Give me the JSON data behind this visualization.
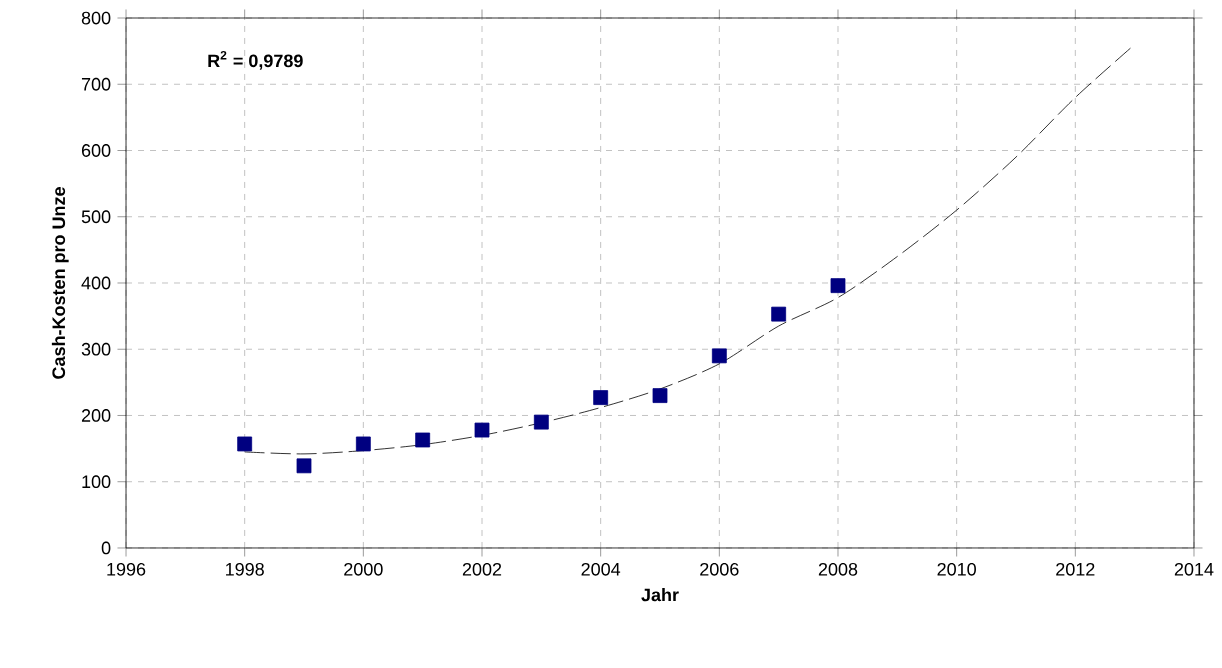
{
  "chart_data": {
    "type": "scatter",
    "xlabel": "Jahr",
    "ylabel": "Cash-Kosten pro Unze",
    "annotations": [
      "R$^{2}$ = 0,9789"
    ],
    "xlim": [
      1996,
      2014
    ],
    "xticks": [
      1996,
      1998,
      2000,
      2002,
      2004,
      2006,
      2008,
      2010,
      2012,
      2014
    ],
    "ylim": [
      0,
      800
    ],
    "yticks": [
      0,
      100,
      200,
      300,
      400,
      500,
      600,
      700,
      800
    ],
    "grid": true,
    "series": [
      {
        "color": "#000080",
        "marker": "square",
        "x": [
          1998,
          1999,
          2000,
          2001,
          2002,
          2003,
          2004,
          2005,
          2006,
          2007,
          2008
        ],
        "values": [
          157,
          124,
          157,
          163,
          178,
          190,
          227,
          230,
          290,
          353,
          396
        ]
      },
      {
        "type": "line",
        "color": "#000000",
        "marker": "none",
        "line_style": "dashed",
        "x": [
          1998,
          1999,
          2000,
          2001,
          2002,
          2003,
          2004,
          2005,
          2006,
          2007,
          2008,
          2009,
          2010,
          2011,
          2012,
          2013
        ],
        "values": [
          145,
          142,
          147,
          156,
          170,
          189,
          212,
          240,
          278,
          335,
          378,
          440,
          510,
          590,
          680,
          760
        ]
      }
    ]
  }
}
